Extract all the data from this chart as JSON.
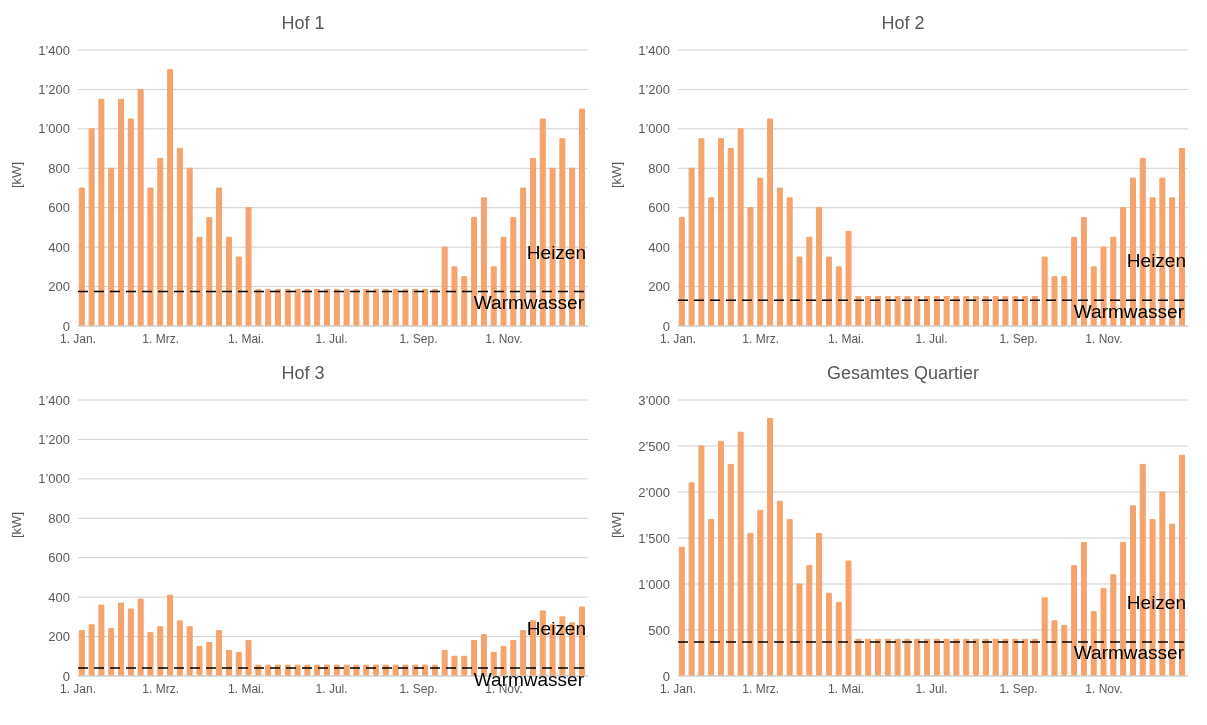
{
  "chart_data": [
    {
      "type": "bar",
      "title": "Hof 1",
      "ylabel": "[kW]",
      "color": "#f4a46c",
      "grid": "y",
      "x": [
        "--01-04",
        "--01-11",
        "--01-18",
        "--01-25",
        "--02-01",
        "--02-08",
        "--02-15",
        "--02-22",
        "--03-01",
        "--03-08",
        "--03-15",
        "--03-22",
        "--03-29",
        "--04-05",
        "--04-12",
        "--04-19",
        "--04-26",
        "--05-03",
        "--05-10",
        "--05-17",
        "--05-24",
        "--05-31",
        "--06-07",
        "--06-14",
        "--06-21",
        "--06-28",
        "--07-05",
        "--07-12",
        "--07-19",
        "--07-26",
        "--08-02",
        "--08-09",
        "--08-16",
        "--08-23",
        "--08-30",
        "--09-06",
        "--09-13",
        "--09-20",
        "--09-27",
        "--10-04",
        "--10-11",
        "--10-18",
        "--10-25",
        "--11-01",
        "--11-08",
        "--11-15",
        "--11-22",
        "--11-29",
        "--12-06",
        "--12-13",
        "--12-20",
        "--12-27"
      ],
      "values": [
        700,
        1000,
        1150,
        800,
        1150,
        1050,
        1200,
        700,
        850,
        1300,
        900,
        800,
        450,
        550,
        700,
        450,
        350,
        600,
        185,
        185,
        185,
        185,
        185,
        185,
        185,
        185,
        185,
        185,
        185,
        185,
        185,
        185,
        185,
        185,
        185,
        185,
        185,
        400,
        300,
        250,
        550,
        650,
        300,
        450,
        550,
        700,
        850,
        1050,
        800,
        950,
        800,
        1100
      ],
      "xlim": [
        "--01-01",
        "--12-31"
      ],
      "xticks": [
        {
          "value": "--01-01",
          "label": "1. Jan."
        },
        {
          "value": "--03-01",
          "label": "1. Mrz."
        },
        {
          "value": "--05-01",
          "label": "1. Mai."
        },
        {
          "value": "--07-01",
          "label": "1. Jul."
        },
        {
          "value": "--09-01",
          "label": "1. Sep."
        },
        {
          "value": "--11-01",
          "label": "1. Nov."
        }
      ],
      "ylim": [
        0,
        1400
      ],
      "yticks": [
        {
          "value": 0,
          "label": "0"
        },
        {
          "value": 200,
          "label": "200"
        },
        {
          "value": 400,
          "label": "400"
        },
        {
          "value": 600,
          "label": "600"
        },
        {
          "value": 800,
          "label": "800"
        },
        {
          "value": 1000,
          "label": "1’000"
        },
        {
          "value": 1200,
          "label": "1’200"
        },
        {
          "value": 1400,
          "label": "1’400"
        }
      ],
      "ref_lines": [
        {
          "axis": "y",
          "value": 175,
          "label": "Warmwasser",
          "color": "#000000",
          "line_style": "dashed"
        }
      ],
      "annotations": [
        "Heizen"
      ]
    },
    {
      "type": "bar",
      "title": "Hof 2",
      "ylabel": "[kW]",
      "color": "#f4a46c",
      "grid": "y",
      "x": [
        "--01-04",
        "--01-11",
        "--01-18",
        "--01-25",
        "--02-01",
        "--02-08",
        "--02-15",
        "--02-22",
        "--03-01",
        "--03-08",
        "--03-15",
        "--03-22",
        "--03-29",
        "--04-05",
        "--04-12",
        "--04-19",
        "--04-26",
        "--05-03",
        "--05-10",
        "--05-17",
        "--05-24",
        "--05-31",
        "--06-07",
        "--06-14",
        "--06-21",
        "--06-28",
        "--07-05",
        "--07-12",
        "--07-19",
        "--07-26",
        "--08-02",
        "--08-09",
        "--08-16",
        "--08-23",
        "--08-30",
        "--09-06",
        "--09-13",
        "--09-20",
        "--09-27",
        "--10-04",
        "--10-11",
        "--10-18",
        "--10-25",
        "--11-01",
        "--11-08",
        "--11-15",
        "--11-22",
        "--11-29",
        "--12-06",
        "--12-13",
        "--12-20",
        "--12-27"
      ],
      "values": [
        550,
        800,
        950,
        650,
        950,
        900,
        1000,
        600,
        750,
        1050,
        700,
        650,
        350,
        450,
        600,
        350,
        300,
        480,
        150,
        150,
        150,
        150,
        150,
        150,
        150,
        150,
        150,
        150,
        150,
        150,
        150,
        150,
        150,
        150,
        150,
        150,
        150,
        350,
        250,
        250,
        450,
        550,
        300,
        400,
        450,
        600,
        750,
        850,
        650,
        750,
        650,
        900
      ],
      "xlim": [
        "--01-01",
        "--12-31"
      ],
      "xticks": [
        {
          "value": "--01-01",
          "label": "1. Jan."
        },
        {
          "value": "--03-01",
          "label": "1. Mrz."
        },
        {
          "value": "--05-01",
          "label": "1. Mai."
        },
        {
          "value": "--07-01",
          "label": "1. Jul."
        },
        {
          "value": "--09-01",
          "label": "1. Sep."
        },
        {
          "value": "--11-01",
          "label": "1. Nov."
        }
      ],
      "ylim": [
        0,
        1400
      ],
      "yticks": [
        {
          "value": 0,
          "label": "0"
        },
        {
          "value": 200,
          "label": "200"
        },
        {
          "value": 400,
          "label": "400"
        },
        {
          "value": 600,
          "label": "600"
        },
        {
          "value": 800,
          "label": "800"
        },
        {
          "value": 1000,
          "label": "1’000"
        },
        {
          "value": 1200,
          "label": "1’200"
        },
        {
          "value": 1400,
          "label": "1’400"
        }
      ],
      "ref_lines": [
        {
          "axis": "y",
          "value": 130,
          "label": "Warmwasser",
          "color": "#000000",
          "line_style": "dashed"
        }
      ],
      "annotations": [
        "Heizen"
      ]
    },
    {
      "type": "bar",
      "title": "Hof 3",
      "ylabel": "[kW]",
      "color": "#f4a46c",
      "grid": "y",
      "x": [
        "--01-04",
        "--01-11",
        "--01-18",
        "--01-25",
        "--02-01",
        "--02-08",
        "--02-15",
        "--02-22",
        "--03-01",
        "--03-08",
        "--03-15",
        "--03-22",
        "--03-29",
        "--04-05",
        "--04-12",
        "--04-19",
        "--04-26",
        "--05-03",
        "--05-10",
        "--05-17",
        "--05-24",
        "--05-31",
        "--06-07",
        "--06-14",
        "--06-21",
        "--06-28",
        "--07-05",
        "--07-12",
        "--07-19",
        "--07-26",
        "--08-02",
        "--08-09",
        "--08-16",
        "--08-23",
        "--08-30",
        "--09-06",
        "--09-13",
        "--09-20",
        "--09-27",
        "--10-04",
        "--10-11",
        "--10-18",
        "--10-25",
        "--11-01",
        "--11-08",
        "--11-15",
        "--11-22",
        "--11-29",
        "--12-06",
        "--12-13",
        "--12-20",
        "--12-27"
      ],
      "values": [
        230,
        260,
        360,
        240,
        370,
        340,
        390,
        220,
        250,
        410,
        280,
        250,
        150,
        170,
        230,
        130,
        120,
        180,
        55,
        55,
        55,
        55,
        55,
        55,
        55,
        55,
        55,
        55,
        55,
        55,
        55,
        55,
        55,
        55,
        55,
        55,
        55,
        130,
        100,
        100,
        180,
        210,
        120,
        150,
        180,
        230,
        280,
        330,
        260,
        300,
        270,
        350
      ],
      "xlim": [
        "--01-01",
        "--12-31"
      ],
      "xticks": [
        {
          "value": "--01-01",
          "label": "1. Jan."
        },
        {
          "value": "--03-01",
          "label": "1. Mrz."
        },
        {
          "value": "--05-01",
          "label": "1. Mai."
        },
        {
          "value": "--07-01",
          "label": "1. Jul."
        },
        {
          "value": "--09-01",
          "label": "1. Sep."
        },
        {
          "value": "--11-01",
          "label": "1. Nov."
        }
      ],
      "ylim": [
        0,
        1400
      ],
      "yticks": [
        {
          "value": 0,
          "label": "0"
        },
        {
          "value": 200,
          "label": "200"
        },
        {
          "value": 400,
          "label": "400"
        },
        {
          "value": 600,
          "label": "600"
        },
        {
          "value": 800,
          "label": "800"
        },
        {
          "value": 1000,
          "label": "1’000"
        },
        {
          "value": 1200,
          "label": "1’200"
        },
        {
          "value": 1400,
          "label": "1’400"
        }
      ],
      "ref_lines": [
        {
          "axis": "y",
          "value": 40,
          "label": "Warmwasser",
          "color": "#000000",
          "line_style": "dashed"
        }
      ],
      "annotations": [
        "Heizen"
      ]
    },
    {
      "type": "bar",
      "title": "Gesamtes Quartier",
      "ylabel": "[kW]",
      "color": "#f4a46c",
      "grid": "y",
      "x": [
        "--01-04",
        "--01-11",
        "--01-18",
        "--01-25",
        "--02-01",
        "--02-08",
        "--02-15",
        "--02-22",
        "--03-01",
        "--03-08",
        "--03-15",
        "--03-22",
        "--03-29",
        "--04-05",
        "--04-12",
        "--04-19",
        "--04-26",
        "--05-03",
        "--05-10",
        "--05-17",
        "--05-24",
        "--05-31",
        "--06-07",
        "--06-14",
        "--06-21",
        "--06-28",
        "--07-05",
        "--07-12",
        "--07-19",
        "--07-26",
        "--08-02",
        "--08-09",
        "--08-16",
        "--08-23",
        "--08-30",
        "--09-06",
        "--09-13",
        "--09-20",
        "--09-27",
        "--10-04",
        "--10-11",
        "--10-18",
        "--10-25",
        "--11-01",
        "--11-08",
        "--11-15",
        "--11-22",
        "--11-29",
        "--12-06",
        "--12-13",
        "--12-20",
        "--12-27"
      ],
      "values": [
        1400,
        2100,
        2500,
        1700,
        2550,
        2300,
        2650,
        1550,
        1800,
        2800,
        1900,
        1700,
        1000,
        1200,
        1550,
        900,
        800,
        1250,
        400,
        400,
        400,
        400,
        400,
        400,
        400,
        400,
        400,
        400,
        400,
        400,
        400,
        400,
        400,
        400,
        400,
        400,
        400,
        850,
        600,
        550,
        1200,
        1450,
        700,
        950,
        1100,
        1450,
        1850,
        2300,
        1700,
        2000,
        1650,
        2400
      ],
      "xlim": [
        "--01-01",
        "--12-31"
      ],
      "xticks": [
        {
          "value": "--01-01",
          "label": "1. Jan."
        },
        {
          "value": "--03-01",
          "label": "1. Mrz."
        },
        {
          "value": "--05-01",
          "label": "1. Mai."
        },
        {
          "value": "--07-01",
          "label": "1. Jul."
        },
        {
          "value": "--09-01",
          "label": "1. Sep."
        },
        {
          "value": "--11-01",
          "label": "1. Nov."
        }
      ],
      "ylim": [
        0,
        3000
      ],
      "yticks": [
        {
          "value": 0,
          "label": "0"
        },
        {
          "value": 500,
          "label": "500"
        },
        {
          "value": 1000,
          "label": "1’000"
        },
        {
          "value": 1500,
          "label": "1’500"
        },
        {
          "value": 2000,
          "label": "2’000"
        },
        {
          "value": 2500,
          "label": "2’500"
        },
        {
          "value": 3000,
          "label": "3’000"
        }
      ],
      "ref_lines": [
        {
          "axis": "y",
          "value": 370,
          "label": "Warmwasser",
          "color": "#000000",
          "line_style": "dashed"
        }
      ],
      "annotations": [
        "Heizen"
      ]
    }
  ]
}
